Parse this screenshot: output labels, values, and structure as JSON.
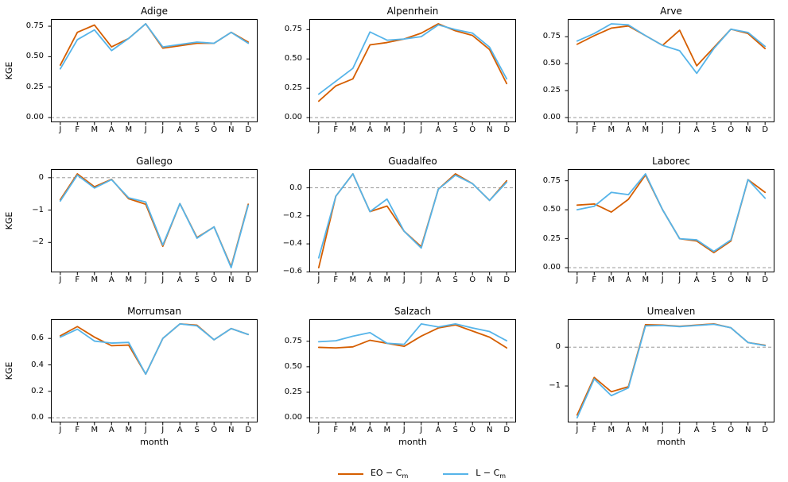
{
  "figure": {
    "ylabel": "KGE",
    "xlabel": "month",
    "months": [
      "J",
      "F",
      "M",
      "A",
      "M",
      "J",
      "J",
      "A",
      "S",
      "O",
      "N",
      "D"
    ],
    "zero_line": {
      "y": 0,
      "style": "dashed",
      "color": "#8a8a8a"
    }
  },
  "colors": {
    "eo": "#d55e00",
    "l": "#56b4e9",
    "axis": "#000000",
    "text": "#000000",
    "background": "#ffffff"
  },
  "legend": {
    "entries": [
      {
        "label": "EO − C",
        "sub": "m",
        "color_key": "eo"
      },
      {
        "label": "L − C",
        "sub": "m",
        "color_key": "l"
      }
    ]
  },
  "chart_data": [
    {
      "type": "line",
      "title": "Adige",
      "categories": [
        "J",
        "F",
        "M",
        "A",
        "M",
        "J",
        "J",
        "A",
        "S",
        "O",
        "N",
        "D"
      ],
      "ytick_values": [
        0.0,
        0.25,
        0.5,
        0.75
      ],
      "ytick_labels": [
        "0.00",
        "0.25",
        "0.50",
        "0.75"
      ],
      "ylim": [
        -0.039,
        0.809
      ],
      "show_ylabel": true,
      "show_xlabel": false,
      "series": [
        {
          "name": "EO − Cm",
          "color_key": "eo",
          "values": [
            0.43,
            0.7,
            0.76,
            0.58,
            0.65,
            0.77,
            0.57,
            0.59,
            0.61,
            0.61,
            0.7,
            0.62
          ]
        },
        {
          "name": "L − Cm",
          "color_key": "l",
          "values": [
            0.4,
            0.64,
            0.72,
            0.55,
            0.65,
            0.77,
            0.58,
            0.6,
            0.62,
            0.61,
            0.7,
            0.61
          ]
        }
      ]
    },
    {
      "type": "line",
      "title": "Alpenrhein",
      "categories": [
        "J",
        "F",
        "M",
        "A",
        "M",
        "J",
        "J",
        "A",
        "S",
        "O",
        "N",
        "D"
      ],
      "ytick_values": [
        0.0,
        0.25,
        0.5,
        0.75
      ],
      "ytick_labels": [
        "0.00",
        "0.25",
        "0.50",
        "0.75"
      ],
      "ylim": [
        -0.04,
        0.84
      ],
      "show_ylabel": false,
      "show_xlabel": false,
      "series": [
        {
          "name": "EO − Cm",
          "color_key": "eo",
          "values": [
            0.14,
            0.27,
            0.33,
            0.62,
            0.64,
            0.67,
            0.72,
            0.8,
            0.74,
            0.7,
            0.58,
            0.29
          ]
        },
        {
          "name": "L − Cm",
          "color_key": "l",
          "values": [
            0.2,
            0.31,
            0.42,
            0.73,
            0.66,
            0.67,
            0.69,
            0.79,
            0.75,
            0.72,
            0.6,
            0.33
          ]
        }
      ]
    },
    {
      "type": "line",
      "title": "Arve",
      "categories": [
        "J",
        "F",
        "M",
        "A",
        "M",
        "J",
        "J",
        "A",
        "S",
        "O",
        "N",
        "D"
      ],
      "ytick_values": [
        0.0,
        0.25,
        0.5,
        0.75
      ],
      "ytick_labels": [
        "0.00",
        "0.25",
        "0.50",
        "0.75"
      ],
      "ylim": [
        -0.044,
        0.914
      ],
      "show_ylabel": false,
      "show_xlabel": false,
      "series": [
        {
          "name": "EO − Cm",
          "color_key": "eo",
          "values": [
            0.68,
            0.76,
            0.83,
            0.85,
            0.76,
            0.67,
            0.81,
            0.48,
            0.65,
            0.82,
            0.78,
            0.64
          ]
        },
        {
          "name": "L − Cm",
          "color_key": "l",
          "values": [
            0.71,
            0.78,
            0.87,
            0.86,
            0.76,
            0.67,
            0.62,
            0.41,
            0.64,
            0.82,
            0.79,
            0.66
          ]
        }
      ]
    },
    {
      "type": "line",
      "title": "Gallego",
      "categories": [
        "J",
        "F",
        "M",
        "A",
        "M",
        "J",
        "J",
        "A",
        "S",
        "O",
        "N",
        "D"
      ],
      "ytick_values": [
        0,
        -1,
        -2
      ],
      "ytick_labels": [
        "0",
        "−1",
        "−2"
      ],
      "ylim": [
        -2.925,
        0.265
      ],
      "show_ylabel": true,
      "show_xlabel": false,
      "series": [
        {
          "name": "EO − Cm",
          "color_key": "eo",
          "values": [
            -0.68,
            0.12,
            -0.28,
            -0.05,
            -0.65,
            -0.82,
            -2.12,
            -0.8,
            -1.85,
            -1.52,
            -2.75,
            -0.82
          ]
        },
        {
          "name": "L − Cm",
          "color_key": "l",
          "values": [
            -0.72,
            0.08,
            -0.32,
            -0.06,
            -0.62,
            -0.75,
            -2.08,
            -0.8,
            -1.87,
            -1.52,
            -2.78,
            -0.85
          ]
        }
      ]
    },
    {
      "type": "line",
      "title": "Guadalfeo",
      "categories": [
        "J",
        "F",
        "M",
        "A",
        "M",
        "J",
        "J",
        "A",
        "S",
        "O",
        "N",
        "D"
      ],
      "ytick_values": [
        0.0,
        -0.2,
        -0.4,
        -0.6
      ],
      "ytick_labels": [
        "0.0",
        "−0.2",
        "−0.4",
        "−0.6"
      ],
      "ylim": [
        -0.6035,
        0.1335
      ],
      "show_ylabel": false,
      "show_xlabel": false,
      "series": [
        {
          "name": "EO − Cm",
          "color_key": "eo",
          "values": [
            -0.57,
            -0.06,
            0.1,
            -0.17,
            -0.13,
            -0.31,
            -0.42,
            -0.01,
            0.1,
            0.03,
            -0.09,
            0.05
          ]
        },
        {
          "name": "L − Cm",
          "color_key": "l",
          "values": [
            -0.5,
            -0.06,
            0.1,
            -0.17,
            -0.08,
            -0.31,
            -0.43,
            -0.01,
            0.09,
            0.03,
            -0.09,
            0.04
          ]
        }
      ]
    },
    {
      "type": "line",
      "title": "Laborec",
      "categories": [
        "J",
        "F",
        "M",
        "A",
        "M",
        "J",
        "J",
        "A",
        "S",
        "O",
        "N",
        "D"
      ],
      "ytick_values": [
        0.0,
        0.25,
        0.5,
        0.75
      ],
      "ytick_labels": [
        "0.00",
        "0.25",
        "0.50",
        "0.75"
      ],
      "ylim": [
        -0.0405,
        0.8505
      ],
      "show_ylabel": false,
      "show_xlabel": false,
      "series": [
        {
          "name": "EO − Cm",
          "color_key": "eo",
          "values": [
            0.54,
            0.55,
            0.48,
            0.59,
            0.8,
            0.5,
            0.25,
            0.23,
            0.13,
            0.23,
            0.76,
            0.65
          ]
        },
        {
          "name": "L − Cm",
          "color_key": "l",
          "values": [
            0.5,
            0.53,
            0.65,
            0.63,
            0.81,
            0.5,
            0.25,
            0.24,
            0.14,
            0.24,
            0.76,
            0.6
          ]
        }
      ]
    },
    {
      "type": "line",
      "title": "Morrumsan",
      "categories": [
        "J",
        "F",
        "M",
        "A",
        "M",
        "J",
        "J",
        "A",
        "S",
        "O",
        "N",
        "D"
      ],
      "ytick_values": [
        0.0,
        0.2,
        0.4,
        0.6
      ],
      "ytick_labels": [
        "0.0",
        "0.2",
        "0.4",
        "0.6"
      ],
      "ylim": [
        -0.0355,
        0.7455
      ],
      "show_ylabel": true,
      "show_xlabel": true,
      "series": [
        {
          "name": "EO − Cm",
          "color_key": "eo",
          "values": [
            0.62,
            0.69,
            0.61,
            0.545,
            0.55,
            0.33,
            0.6,
            0.71,
            0.7,
            0.59,
            0.675,
            0.63
          ]
        },
        {
          "name": "L − Cm",
          "color_key": "l",
          "values": [
            0.61,
            0.67,
            0.58,
            0.565,
            0.57,
            0.33,
            0.6,
            0.71,
            0.695,
            0.59,
            0.675,
            0.63
          ]
        }
      ]
    },
    {
      "type": "line",
      "title": "Salzach",
      "categories": [
        "J",
        "F",
        "M",
        "A",
        "M",
        "J",
        "J",
        "A",
        "S",
        "O",
        "N",
        "D"
      ],
      "ytick_values": [
        0.0,
        0.25,
        0.5,
        0.75
      ],
      "ytick_labels": [
        "0.00",
        "0.25",
        "0.50",
        "0.75"
      ],
      "ylim": [
        -0.046,
        0.966
      ],
      "show_ylabel": false,
      "show_xlabel": true,
      "series": [
        {
          "name": "EO − Cm",
          "color_key": "eo",
          "values": [
            0.69,
            0.685,
            0.695,
            0.76,
            0.73,
            0.7,
            0.8,
            0.88,
            0.91,
            0.85,
            0.79,
            0.685
          ]
        },
        {
          "name": "L − Cm",
          "color_key": "l",
          "values": [
            0.745,
            0.755,
            0.8,
            0.835,
            0.73,
            0.72,
            0.92,
            0.89,
            0.92,
            0.88,
            0.845,
            0.755
          ]
        }
      ]
    },
    {
      "type": "line",
      "title": "Umealven",
      "categories": [
        "J",
        "F",
        "M",
        "A",
        "M",
        "J",
        "J",
        "A",
        "S",
        "O",
        "N",
        "D"
      ],
      "ytick_values": [
        0,
        -1
      ],
      "ytick_labels": [
        "0",
        "−1"
      ],
      "ylim": [
        -1.941,
        0.721
      ],
      "show_ylabel": false,
      "show_xlabel": true,
      "series": [
        {
          "name": "EO − Cm",
          "color_key": "eo",
          "values": [
            -1.75,
            -0.78,
            -1.15,
            -1.02,
            0.58,
            0.57,
            0.54,
            0.57,
            0.6,
            0.5,
            0.12,
            0.05
          ]
        },
        {
          "name": "L − Cm",
          "color_key": "l",
          "values": [
            -1.82,
            -0.82,
            -1.25,
            -1.05,
            0.55,
            0.56,
            0.53,
            0.56,
            0.59,
            0.5,
            0.12,
            0.04
          ]
        }
      ]
    }
  ]
}
